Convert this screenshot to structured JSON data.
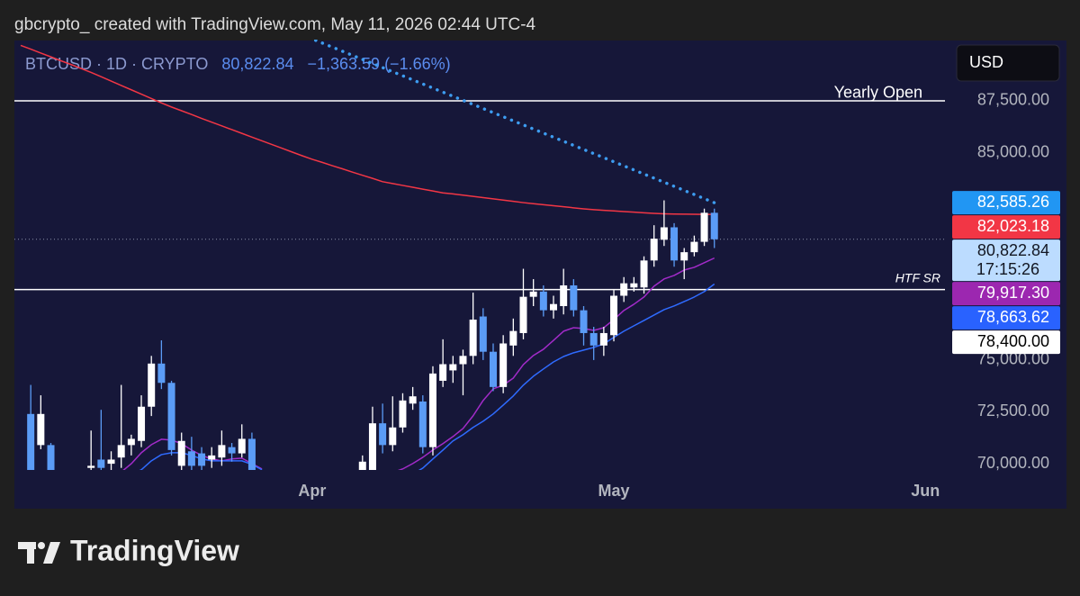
{
  "header": {
    "credit": "gbcrypto_ created with TradingView.com, May 11, 2026 02:44 UTC-4",
    "symbol": "BTCUSD · 1D · CRYPTO",
    "change": "−1,363.59 (−1.66%)",
    "currency": "USD"
  },
  "footer": {
    "brand": "TradingView"
  },
  "chart_data": {
    "type": "candlestick",
    "categories": [
      null,
      null,
      null,
      null,
      null,
      null,
      null,
      null,
      null,
      null,
      null,
      null,
      null,
      null,
      null,
      null,
      null,
      null,
      null,
      null,
      null,
      null,
      null,
      null,
      null,
      null,
      null,
      null,
      null,
      "Apr",
      null,
      null,
      null,
      null,
      null,
      null,
      null,
      null,
      null,
      null,
      null,
      null,
      null,
      null,
      null,
      null,
      null,
      null,
      null,
      null,
      null,
      null,
      null,
      null,
      null,
      null,
      null,
      null,
      null,
      "May",
      null,
      null,
      null,
      null,
      null,
      null,
      null,
      null,
      null,
      null,
      null,
      null,
      null,
      null,
      null,
      null,
      null,
      null,
      null,
      null,
      null,
      null,
      null,
      null,
      null,
      null,
      null,
      null,
      null,
      null,
      "Jun",
      null
    ],
    "open": [
      null,
      72400,
      70900,
      70900,
      null,
      null,
      null,
      69800,
      70200,
      70000,
      70300,
      70900,
      71100,
      72750,
      74830,
      73900,
      69900,
      70600,
      70500,
      70200,
      70300,
      70800,
      70500,
      71200,
      null,
      null,
      null,
      null,
      null,
      null,
      null,
      null,
      null,
      null,
      69600,
      69500,
      71950,
      70900,
      71750,
      72900,
      73000,
      70800,
      74000,
      74500,
      74800,
      75200,
      77100,
      75400,
      73700,
      75700,
      76300,
      78050,
      78300,
      77400,
      77600,
      78600,
      77400,
      76300,
      75700,
      76200,
      78100,
      78500,
      78500,
      79800,
      80800,
      81400,
      79800,
      80200,
      80700,
      82100,
      null,
      null,
      null,
      null,
      null,
      null,
      null,
      null,
      null,
      null,
      null,
      null,
      null,
      null,
      null,
      null,
      null,
      null,
      null,
      null,
      null,
      null
    ],
    "high": [
      null,
      73800,
      73300,
      71000,
      null,
      null,
      null,
      71600,
      72600,
      70600,
      73800,
      71400,
      73300,
      75200,
      75950,
      74000,
      71500,
      71300,
      70800,
      70800,
      71600,
      71000,
      71900,
      71500,
      null,
      null,
      null,
      null,
      null,
      null,
      null,
      null,
      null,
      null,
      70400,
      72750,
      72900,
      73250,
      73400,
      73700,
      73300,
      74700,
      76000,
      75200,
      75500,
      78250,
      77500,
      75800,
      76200,
      77000,
      79400,
      78900,
      78600,
      78100,
      79400,
      78900,
      77600,
      76600,
      76600,
      78400,
      79000,
      79000,
      80000,
      81500,
      82700,
      81600,
      80400,
      81000,
      82300,
      82300,
      null,
      null,
      null,
      null,
      null,
      null,
      null,
      null,
      null,
      null,
      null,
      null,
      null,
      null,
      null,
      null,
      null,
      null,
      null,
      null,
      null,
      null
    ],
    "low": [
      null,
      69200,
      70700,
      69200,
      null,
      null,
      null,
      69500,
      69500,
      69600,
      69800,
      70400,
      70800,
      72300,
      73600,
      70400,
      69600,
      69600,
      69600,
      69800,
      69900,
      70100,
      70300,
      69300,
      null,
      null,
      null,
      null,
      null,
      null,
      null,
      null,
      null,
      null,
      69300,
      69300,
      70500,
      70600,
      71500,
      72600,
      70500,
      70400,
      73700,
      73900,
      73300,
      74800,
      75000,
      73500,
      73400,
      75200,
      76000,
      77600,
      77100,
      77000,
      77200,
      77100,
      75700,
      75000,
      75200,
      75900,
      77800,
      78300,
      78200,
      79500,
      80500,
      79500,
      78900,
      80000,
      80500,
      80400,
      null,
      null,
      null,
      null,
      null,
      null,
      null,
      null,
      null,
      null,
      null,
      null,
      null,
      null,
      null,
      null,
      null,
      null,
      null,
      null,
      null,
      null
    ],
    "close": [
      null,
      69600,
      72400,
      69500,
      null,
      null,
      null,
      69900,
      69800,
      70200,
      70900,
      71200,
      72750,
      74830,
      73900,
      70660,
      71100,
      69900,
      69900,
      70400,
      70900,
      70500,
      71200,
      69600,
      null,
      null,
      null,
      null,
      null,
      null,
      null,
      null,
      null,
      null,
      70100,
      71950,
      70900,
      71750,
      73050,
      73250,
      70800,
      74350,
      74800,
      74800,
      75200,
      76950,
      75400,
      73700,
      75800,
      76400,
      78050,
      78300,
      77400,
      77700,
      78600,
      77400,
      76300,
      75700,
      76300,
      78100,
      78700,
      78700,
      79800,
      80850,
      81400,
      79800,
      80200,
      80700,
      82100,
      80822.84,
      null,
      null,
      null,
      null,
      null,
      null,
      null,
      null,
      null,
      null,
      null,
      null,
      null,
      null,
      null,
      null,
      null,
      null,
      null,
      null,
      null,
      null
    ],
    "up_color": "#ffffff",
    "down_color": "#5b9cf6",
    "lines": [
      {
        "color": "#f23645",
        "dotted": false,
        "values": [
          90170,
          89990,
          89800,
          89620,
          89430,
          89250,
          89060,
          88870,
          88660,
          88450,
          88240,
          88030,
          87820,
          87610,
          87400,
          87200,
          87020,
          86840,
          86650,
          86470,
          86290,
          86110,
          85930,
          85750,
          85570,
          85390,
          85210,
          85030,
          84850,
          84680,
          84530,
          84370,
          84220,
          84060,
          83910,
          83760,
          83600,
          83510,
          83420,
          83330,
          83240,
          83150,
          83060,
          83010,
          82950,
          82890,
          82830,
          82770,
          82710,
          82650,
          82590,
          82540,
          82490,
          82440,
          82390,
          82340,
          82290,
          82250,
          82220,
          82190,
          82160,
          82130,
          82100,
          82070,
          82050,
          82040,
          82035,
          82030,
          82025,
          82023.18,
          null,
          null,
          null,
          null,
          null,
          null,
          null,
          null,
          null,
          null,
          null,
          null,
          null,
          null,
          null,
          null,
          null,
          null,
          null,
          null,
          null,
          null
        ]
      },
      {
        "color": "#a22bc9",
        "dotted": false,
        "values": [
          null,
          null,
          null,
          null,
          null,
          null,
          null,
          null,
          null,
          null,
          69600,
          70000,
          70530,
          70920,
          71180,
          71140,
          70970,
          70660,
          70400,
          70230,
          70140,
          70230,
          70270,
          70010,
          69750,
          null,
          null,
          null,
          null,
          null,
          null,
          null,
          null,
          null,
          null,
          null,
          null,
          69580,
          69750,
          70010,
          70310,
          70660,
          70970,
          71310,
          71700,
          72310,
          73050,
          73610,
          73790,
          74130,
          74780,
          75220,
          75520,
          75950,
          76390,
          76560,
          76520,
          76430,
          76560,
          76950,
          77390,
          77690,
          78040,
          78560,
          78910,
          79080,
          79340,
          79470,
          79690,
          79917.3,
          null,
          null,
          null,
          null,
          null,
          null,
          null,
          null,
          null,
          null,
          null,
          null,
          null,
          null,
          null,
          null,
          null,
          null,
          null,
          null,
          null,
          null
        ]
      },
      {
        "color": "#2f6bff",
        "dotted": false,
        "values": [
          null,
          null,
          null,
          null,
          null,
          null,
          null,
          null,
          null,
          null,
          null,
          69500,
          69710,
          70140,
          70440,
          70530,
          70530,
          70400,
          70230,
          70140,
          70140,
          70140,
          70140,
          69970,
          69710,
          null,
          null,
          null,
          null,
          null,
          null,
          null,
          null,
          null,
          null,
          null,
          null,
          null,
          null,
          69500,
          69790,
          70230,
          70660,
          71100,
          71400,
          71750,
          72050,
          72400,
          72830,
          73270,
          73790,
          74220,
          74570,
          74910,
          75170,
          75350,
          75480,
          75610,
          75780,
          76090,
          76390,
          76650,
          76910,
          77170,
          77430,
          77610,
          77820,
          78040,
          78300,
          78663.62,
          null,
          null,
          null,
          null,
          null,
          null,
          null,
          null,
          null,
          null,
          null,
          null,
          null,
          null,
          null,
          null,
          null,
          null,
          null,
          null,
          null,
          null
        ]
      },
      {
        "color": "#3d9cf0",
        "dotted": true,
        "values": [
          null,
          null,
          null,
          null,
          null,
          null,
          null,
          null,
          null,
          null,
          null,
          null,
          null,
          null,
          null,
          null,
          null,
          null,
          null,
          null,
          null,
          null,
          null,
          null,
          null,
          null,
          null,
          null,
          90680,
          90483,
          90285,
          90088,
          89891,
          89693,
          89496,
          89298,
          89101,
          88903,
          88706,
          88509,
          88311,
          88114,
          87916,
          87719,
          87522,
          87324,
          87127,
          86929,
          86732,
          86535,
          86337,
          86140,
          85942,
          85745,
          85548,
          85350,
          85153,
          84955,
          84758,
          84561,
          84363,
          84166,
          83968,
          83771,
          83574,
          83376,
          83179,
          82981,
          82784,
          82585.26,
          null,
          null,
          null,
          null,
          null,
          null,
          null,
          null,
          null,
          null,
          null,
          null,
          null,
          null,
          null,
          null,
          null,
          null,
          null,
          null,
          null,
          null
        ]
      }
    ],
    "hlines": [
      {
        "label": "Yearly Open",
        "value": 87500,
        "color": "#ffffff"
      },
      {
        "label": "HTF SR",
        "value": 78400,
        "color": "#ffffff"
      }
    ],
    "price_labels": [
      {
        "value": 82585.26,
        "label": "82,585.26",
        "color": "#2196f3",
        "text_color": "#ffffff"
      },
      {
        "value": 82023.18,
        "label": "82,023.18",
        "color": "#f23645",
        "text_color": "#ffffff"
      },
      {
        "value": 80822.84,
        "label": "80,822.84",
        "countdown": "17:15:26",
        "color": "#bcdcff",
        "text_color": "#131722"
      },
      {
        "value": 79917.3,
        "label": "79,917.30",
        "color": "#9c27b0",
        "text_color": "#ffffff"
      },
      {
        "value": 78663.62,
        "label": "78,663.62",
        "color": "#2962ff",
        "text_color": "#ffffff"
      },
      {
        "value": 78400,
        "label": "78,400.00",
        "color": "#ffffff",
        "text_color": "#000000"
      }
    ],
    "ylim": [
      69700,
      90450
    ],
    "yticks": [
      {
        "value": 87500,
        "label": "87,500.00"
      },
      {
        "value": 85000,
        "label": "85,000.00"
      },
      {
        "value": 75000,
        "label": "75,000.00"
      },
      {
        "value": 72500,
        "label": "72,500.00"
      },
      {
        "value": 70000,
        "label": "70,000.00"
      }
    ],
    "grid": false
  }
}
